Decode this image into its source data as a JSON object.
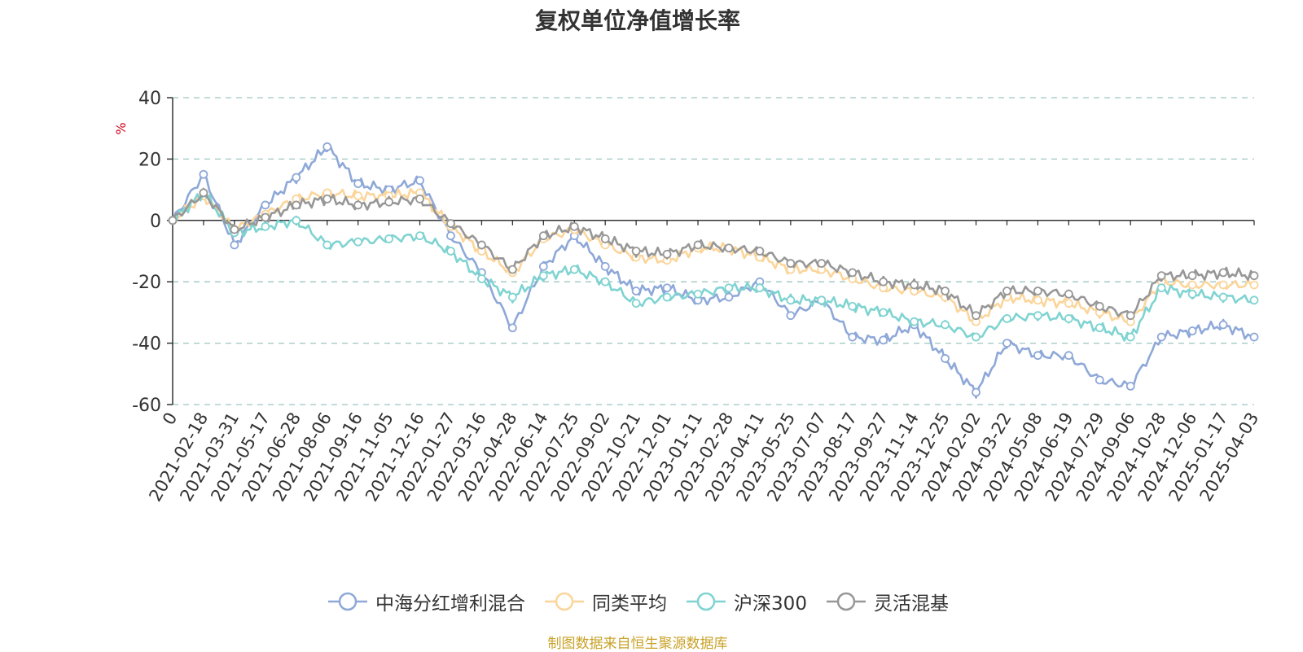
{
  "chart_data": {
    "type": "line",
    "title": "复权单位净值增长率",
    "ylabel": "%",
    "ylim": [
      -60,
      40
    ],
    "yticks": [
      40,
      20,
      0,
      -20,
      -40,
      -60
    ],
    "xlabels": [
      "0",
      "2021-02-18",
      "2021-03-31",
      "2021-05-17",
      "2021-06-28",
      "2021-08-06",
      "2021-09-16",
      "2021-11-05",
      "2021-12-16",
      "2022-01-27",
      "2022-03-16",
      "2022-04-28",
      "2022-06-14",
      "2022-07-25",
      "2022-09-02",
      "2022-10-21",
      "2022-12-01",
      "2023-01-11",
      "2023-02-28",
      "2023-04-11",
      "2023-05-25",
      "2023-07-07",
      "2023-08-17",
      "2023-09-27",
      "2023-11-14",
      "2023-12-25",
      "2024-02-02",
      "2024-03-22",
      "2024-05-08",
      "2024-06-19",
      "2024-07-29",
      "2024-09-06",
      "2024-10-28",
      "2024-12-06",
      "2025-01-17",
      "2025-04-03"
    ],
    "grid": true,
    "legend_position": "bottom",
    "series": [
      {
        "name": "中海分红增利混合",
        "color": "#8ea8d8",
        "values": [
          0,
          15,
          -8,
          5,
          14,
          24,
          12,
          10,
          13,
          -5,
          -17,
          -35,
          -15,
          -5,
          -15,
          -23,
          -22,
          -26,
          -25,
          -20,
          -31,
          -26,
          -38,
          -39,
          -34,
          -45,
          -56,
          -40,
          -44,
          -44,
          -52,
          -54,
          -38,
          -36,
          -34,
          -38
        ]
      },
      {
        "name": "同类平均",
        "color": "#fbd59a",
        "values": [
          0,
          8,
          -3,
          2,
          7,
          9,
          8,
          8,
          9,
          -2,
          -10,
          -17,
          -6,
          -3,
          -8,
          -12,
          -13,
          -9,
          -9,
          -12,
          -16,
          -16,
          -19,
          -22,
          -23,
          -25,
          -33,
          -25,
          -26,
          -27,
          -30,
          -33,
          -20,
          -21,
          -21,
          -21
        ]
      },
      {
        "name": "沪深300",
        "color": "#7fd3d1",
        "values": [
          0,
          9,
          -4,
          -2,
          0,
          -8,
          -7,
          -6,
          -5,
          -10,
          -19,
          -25,
          -18,
          -16,
          -20,
          -27,
          -25,
          -24,
          -22,
          -22,
          -26,
          -26,
          -28,
          -30,
          -33,
          -34,
          -38,
          -32,
          -31,
          -32,
          -35,
          -38,
          -22,
          -24,
          -25,
          -26
        ]
      },
      {
        "name": "灵活混基",
        "color": "#979797",
        "values": [
          0,
          9,
          -3,
          1,
          5,
          7,
          5,
          6,
          7,
          -1,
          -8,
          -16,
          -5,
          -2,
          -6,
          -10,
          -11,
          -8,
          -9,
          -10,
          -14,
          -14,
          -17,
          -20,
          -21,
          -23,
          -31,
          -23,
          -23,
          -24,
          -28,
          -31,
          -18,
          -18,
          -17,
          -18
        ]
      }
    ]
  },
  "source_note": "制图数据来自恒生聚源数据库"
}
